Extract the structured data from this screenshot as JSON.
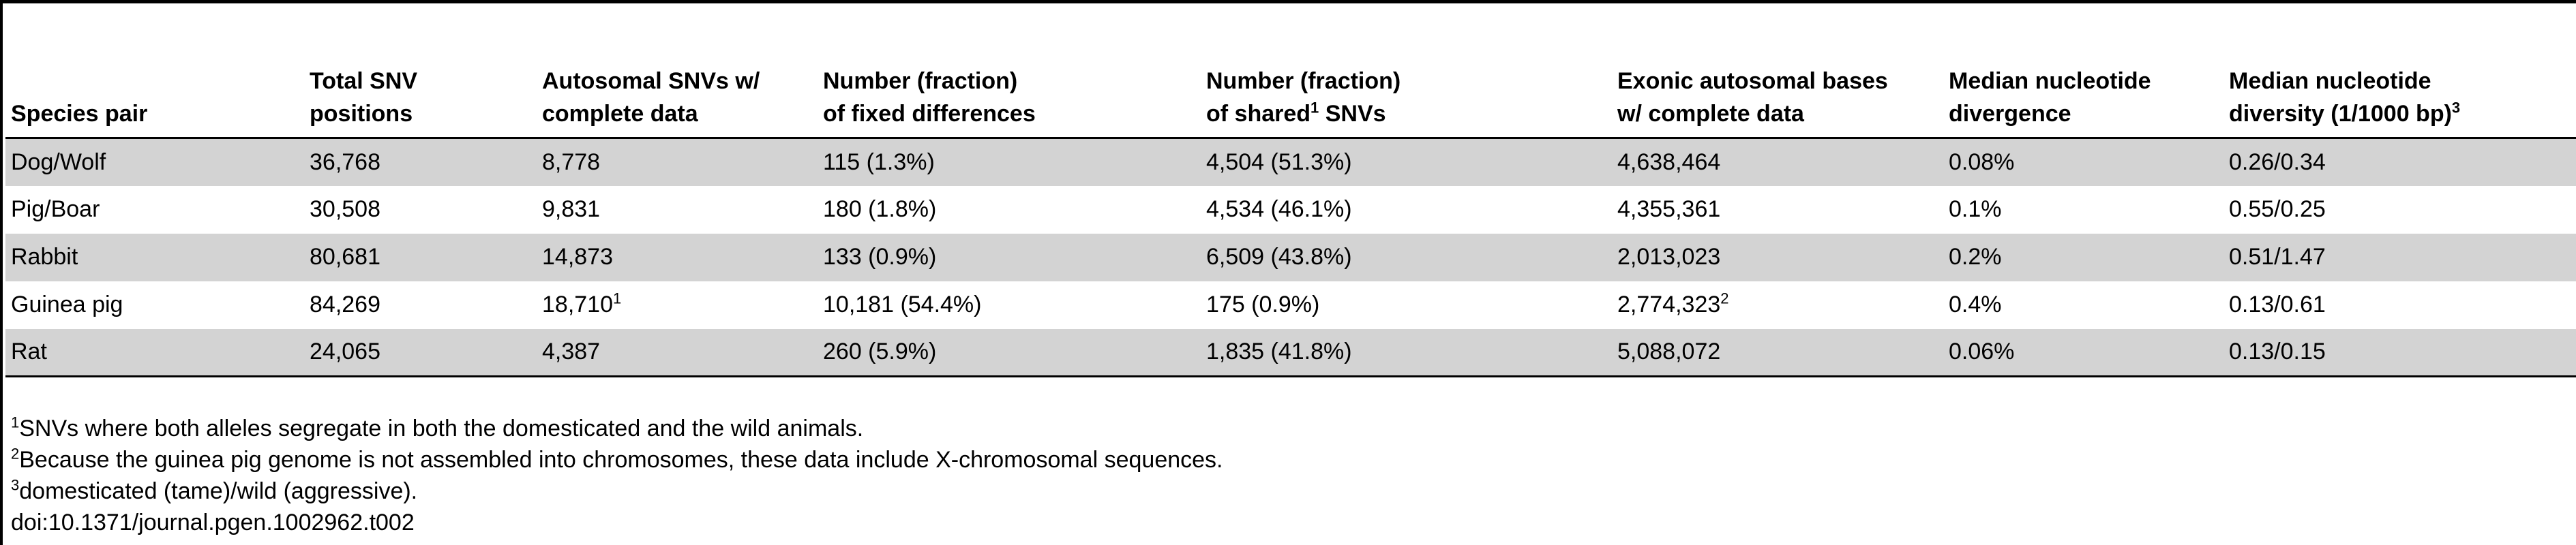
{
  "table": {
    "headers": [
      {
        "text": "Species pair",
        "sup": ""
      },
      {
        "text": "Total SNV\npositions",
        "sup": ""
      },
      {
        "text": "Autosomal SNVs w/\ncomplete data",
        "sup": ""
      },
      {
        "text": "Number (fraction)\nof fixed differences",
        "sup": ""
      },
      {
        "text": "Number (fraction)\nof shared",
        "sup": "1",
        "suffix": " SNVs"
      },
      {
        "text": "Exonic autosomal bases\nw/ complete data",
        "sup": ""
      },
      {
        "text": "Median nucleotide\ndivergence",
        "sup": ""
      },
      {
        "text": "Median nucleotide\ndiversity (1/1000 bp)",
        "sup": "3"
      }
    ],
    "rows": [
      {
        "shaded": true,
        "cells": [
          {
            "text": "Dog/Wolf",
            "sup": ""
          },
          {
            "text": "36,768",
            "sup": ""
          },
          {
            "text": "8,778",
            "sup": ""
          },
          {
            "text": "115 (1.3%)",
            "sup": ""
          },
          {
            "text": "4,504 (51.3%)",
            "sup": ""
          },
          {
            "text": "4,638,464",
            "sup": ""
          },
          {
            "text": "0.08%",
            "sup": ""
          },
          {
            "text": "0.26/0.34",
            "sup": ""
          }
        ]
      },
      {
        "shaded": false,
        "cells": [
          {
            "text": "Pig/Boar",
            "sup": ""
          },
          {
            "text": "30,508",
            "sup": ""
          },
          {
            "text": "9,831",
            "sup": ""
          },
          {
            "text": "180 (1.8%)",
            "sup": ""
          },
          {
            "text": "4,534 (46.1%)",
            "sup": ""
          },
          {
            "text": "4,355,361",
            "sup": ""
          },
          {
            "text": "0.1%",
            "sup": ""
          },
          {
            "text": "0.55/0.25",
            "sup": ""
          }
        ]
      },
      {
        "shaded": true,
        "cells": [
          {
            "text": "Rabbit",
            "sup": ""
          },
          {
            "text": "80,681",
            "sup": ""
          },
          {
            "text": "14,873",
            "sup": ""
          },
          {
            "text": "133 (0.9%)",
            "sup": ""
          },
          {
            "text": "6,509 (43.8%)",
            "sup": ""
          },
          {
            "text": "2,013,023",
            "sup": ""
          },
          {
            "text": "0.2%",
            "sup": ""
          },
          {
            "text": "0.51/1.47",
            "sup": ""
          }
        ]
      },
      {
        "shaded": false,
        "cells": [
          {
            "text": "Guinea pig",
            "sup": ""
          },
          {
            "text": "84,269",
            "sup": ""
          },
          {
            "text": "18,710",
            "sup": "1"
          },
          {
            "text": "10,181 (54.4%)",
            "sup": ""
          },
          {
            "text": "175 (0.9%)",
            "sup": ""
          },
          {
            "text": "2,774,323",
            "sup": "2"
          },
          {
            "text": "0.4%",
            "sup": ""
          },
          {
            "text": "0.13/0.61",
            "sup": ""
          }
        ]
      },
      {
        "shaded": true,
        "cells": [
          {
            "text": "Rat",
            "sup": ""
          },
          {
            "text": "24,065",
            "sup": ""
          },
          {
            "text": "4,387",
            "sup": ""
          },
          {
            "text": "260 (5.9%)",
            "sup": ""
          },
          {
            "text": "1,835 (41.8%)",
            "sup": ""
          },
          {
            "text": "5,088,072",
            "sup": ""
          },
          {
            "text": "0.06%",
            "sup": ""
          },
          {
            "text": "0.13/0.15",
            "sup": ""
          }
        ]
      }
    ],
    "shade_color": "#d3d3d3"
  },
  "footnotes": [
    {
      "marker": "1",
      "text": "SNVs where both alleles segregate in both the domesticated and the wild animals."
    },
    {
      "marker": "2",
      "text": "Because the guinea pig genome is not assembled into chromosomes, these data include X-chromosomal sequences."
    },
    {
      "marker": "3",
      "text": "domesticated (tame)/wild (aggressive)."
    },
    {
      "marker": "",
      "text": "doi:10.1371/journal.pgen.1002962.t002"
    }
  ]
}
